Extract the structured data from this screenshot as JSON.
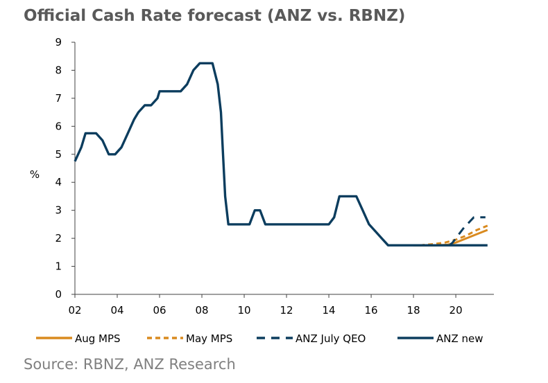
{
  "title": "Official Cash Rate forecast (ANZ vs. RBNZ)",
  "source": "Source: RBNZ, ANZ Research",
  "colors": {
    "anz": "#0c3d5e",
    "aug": "#d98a1f",
    "may": "#d98a1f",
    "axis": "#404040"
  },
  "chart_data": {
    "type": "line",
    "title": "Official Cash Rate forecast (ANZ vs. RBNZ)",
    "xlabel": "",
    "ylabel": "%",
    "xlim": [
      2002,
      2021.8
    ],
    "ylim": [
      0,
      9
    ],
    "grid": false,
    "legend_position": "bottom",
    "x_ticks": [
      {
        "value": 2002,
        "label": "02"
      },
      {
        "value": 2004,
        "label": "04"
      },
      {
        "value": 2006,
        "label": "06"
      },
      {
        "value": 2008,
        "label": "08"
      },
      {
        "value": 2010,
        "label": "10"
      },
      {
        "value": 2012,
        "label": "12"
      },
      {
        "value": 2014,
        "label": "14"
      },
      {
        "value": 2016,
        "label": "16"
      },
      {
        "value": 2018,
        "label": "18"
      },
      {
        "value": 2020,
        "label": "20"
      }
    ],
    "y_ticks": [
      0,
      1,
      2,
      3,
      4,
      5,
      6,
      7,
      8,
      9
    ],
    "series": [
      {
        "name": "Aug MPS",
        "color": "#d98a1f",
        "style": "solid",
        "x": [
          2018.0,
          2019.0,
          2019.6,
          2020.0,
          2020.5,
          2021.0,
          2021.5
        ],
        "y": [
          1.75,
          1.75,
          1.77,
          1.85,
          2.0,
          2.15,
          2.3
        ]
      },
      {
        "name": "May MPS",
        "color": "#d98a1f",
        "style": "dashed",
        "x": [
          2018.3,
          2019.0,
          2019.5,
          2020.0,
          2020.5,
          2021.0,
          2021.5
        ],
        "y": [
          1.75,
          1.8,
          1.85,
          1.95,
          2.1,
          2.3,
          2.45
        ]
      },
      {
        "name": "ANZ July QEO",
        "color": "#0c3d5e",
        "style": "dashed",
        "x": [
          2019.7,
          2019.85,
          2020.1,
          2020.35,
          2020.6,
          2020.85,
          2021.4
        ],
        "y": [
          1.75,
          1.85,
          2.1,
          2.35,
          2.55,
          2.75,
          2.75
        ]
      },
      {
        "name": "ANZ new",
        "color": "#0c3d5e",
        "style": "solid",
        "x": [
          2002.0,
          2002.3,
          2002.5,
          2003.0,
          2003.3,
          2003.6,
          2003.9,
          2004.2,
          2004.5,
          2004.8,
          2005.0,
          2005.3,
          2005.6,
          2005.9,
          2006.0,
          2006.4,
          2006.8,
          2007.0,
          2007.3,
          2007.6,
          2007.9,
          2008.2,
          2008.5,
          2008.75,
          2008.9,
          2009.0,
          2009.1,
          2009.25,
          2009.5,
          2009.75,
          2010.0,
          2010.25,
          2010.5,
          2010.75,
          2011.0,
          2011.2,
          2011.5,
          2012.0,
          2013.0,
          2014.0,
          2014.25,
          2014.5,
          2014.75,
          2015.0,
          2015.3,
          2015.6,
          2015.9,
          2016.2,
          2016.5,
          2016.8,
          2017.0,
          2018.0,
          2019.0,
          2020.0,
          2021.5
        ],
        "y": [
          4.75,
          5.25,
          5.75,
          5.75,
          5.5,
          5.0,
          5.0,
          5.25,
          5.75,
          6.25,
          6.5,
          6.75,
          6.75,
          7.0,
          7.25,
          7.25,
          7.25,
          7.25,
          7.5,
          8.0,
          8.25,
          8.25,
          8.25,
          7.5,
          6.5,
          5.0,
          3.5,
          2.5,
          2.5,
          2.5,
          2.5,
          2.5,
          3.0,
          3.0,
          2.5,
          2.5,
          2.5,
          2.5,
          2.5,
          2.5,
          2.75,
          3.5,
          3.5,
          3.5,
          3.5,
          3.0,
          2.5,
          2.25,
          2.0,
          1.75,
          1.75,
          1.75,
          1.75,
          1.75,
          1.75
        ]
      }
    ]
  }
}
